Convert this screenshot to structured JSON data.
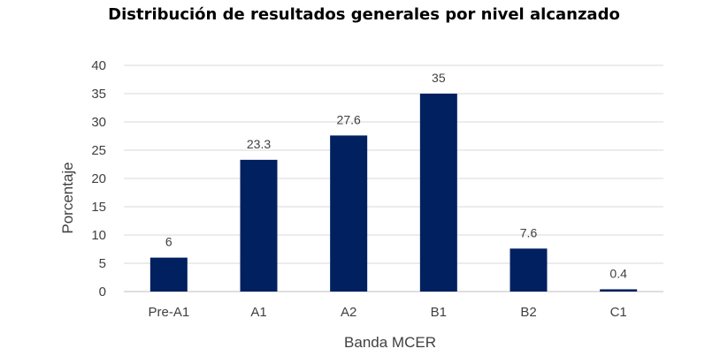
{
  "chart_data": {
    "type": "bar",
    "title": "Distribución de resultados generales por nivel alcanzado",
    "xlabel": "Banda MCER",
    "ylabel": "Porcentaje",
    "categories": [
      "Pre-A1",
      "A1",
      "A2",
      "B1",
      "B2",
      "C1"
    ],
    "values": [
      6,
      23.3,
      27.6,
      35,
      7.6,
      0.4
    ],
    "ylim": [
      0,
      40
    ],
    "yticks": [
      0,
      5,
      10,
      15,
      20,
      25,
      30,
      35,
      40
    ],
    "grid": true,
    "legend": "none",
    "bar_color": "#002060",
    "data_labels": true
  }
}
